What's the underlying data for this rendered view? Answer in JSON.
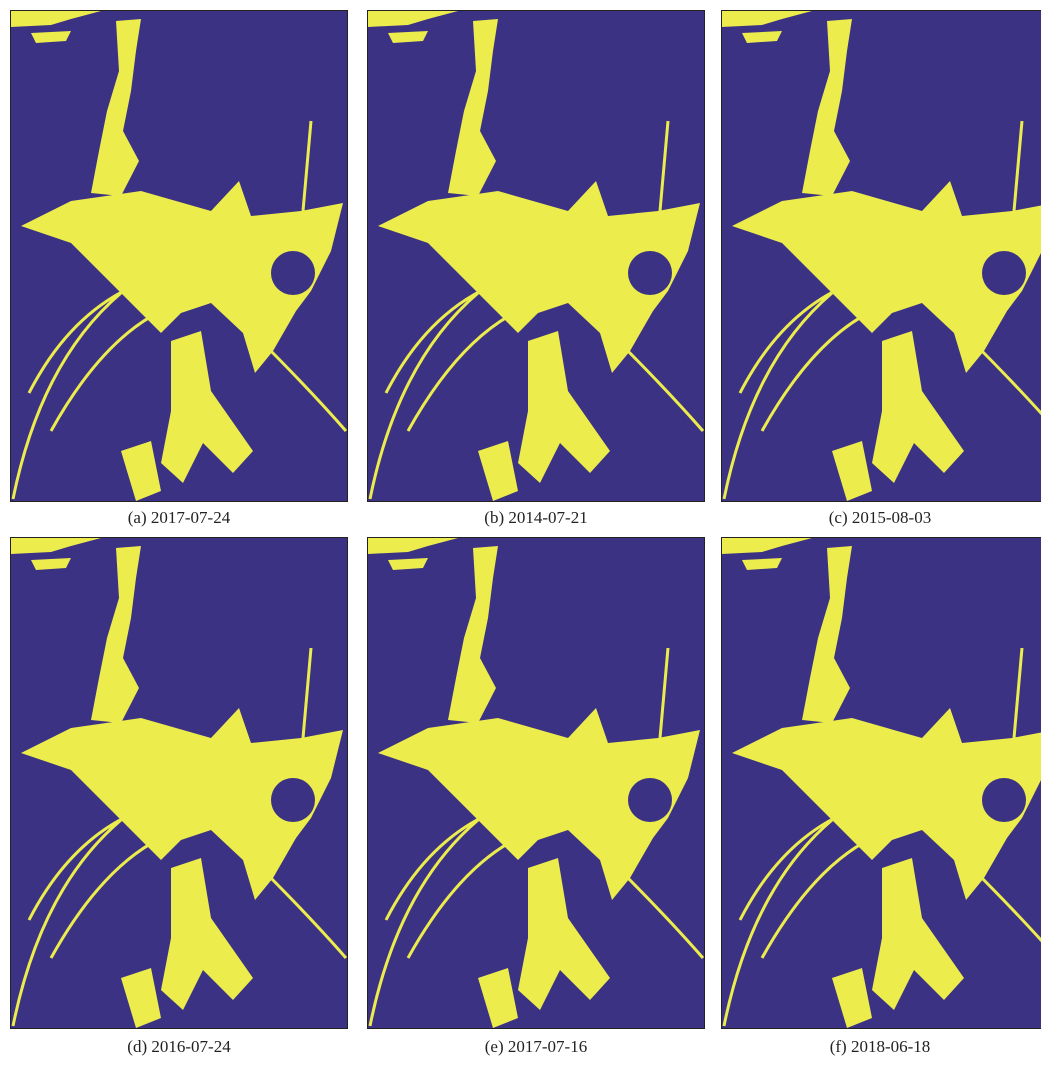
{
  "panels": [
    {
      "caption": "(a) 2017-07-24"
    },
    {
      "caption": "(b) 2014-07-21"
    },
    {
      "caption": "(c) 2015-08-03"
    },
    {
      "caption": "(d) 2016-07-24"
    },
    {
      "caption": "(e) 2017-07-16"
    },
    {
      "caption": "(f) 2018-06-18"
    }
  ]
}
